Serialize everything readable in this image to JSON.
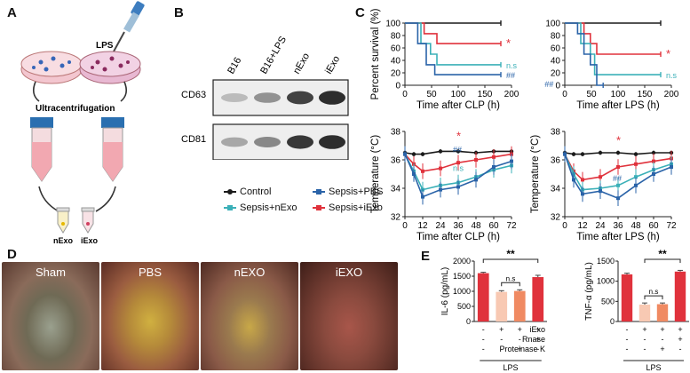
{
  "panels": {
    "A": "A",
    "B": "B",
    "C": "C",
    "D": "D",
    "E": "E"
  },
  "panelA": {
    "lps": "LPS",
    "ultracentrifugation": "Ultracentrifugation",
    "nexo": "nExo",
    "iexo": "iExo"
  },
  "panelB": {
    "lanes": [
      "B16",
      "B16+LPS",
      "nExo",
      "iExo"
    ],
    "rows": [
      "CD63",
      "CD81"
    ]
  },
  "legend": [
    {
      "label": "Control",
      "color": "#1a1a1a"
    },
    {
      "label": "Sepsis+PBS",
      "color": "#2a63a8"
    },
    {
      "label": "Sepsis+nExo",
      "color": "#3bb0b8"
    },
    {
      "label": "Sepsis+iExo",
      "color": "#e0323c"
    }
  ],
  "colors": {
    "control": "#1a1a1a",
    "pbs": "#2a63a8",
    "nexo": "#3bb0b8",
    "iexo": "#e0323c"
  },
  "panelD": {
    "labels": [
      "Sham",
      "PBS",
      "nEXO",
      "iEXO"
    ]
  },
  "chart_data": [
    {
      "type": "line",
      "id": "survival-clp",
      "xlabel": "Time after CLP (h)",
      "ylabel": "Percent survival (%)",
      "xlim": [
        0,
        200
      ],
      "ylim": [
        0,
        100
      ],
      "xticks": [
        0,
        50,
        100,
        150,
        200
      ],
      "yticks": [
        0,
        20,
        40,
        60,
        80,
        100
      ],
      "series": [
        {
          "name": "Control",
          "points": [
            [
              0,
              100
            ],
            [
              180,
              100
            ]
          ]
        },
        {
          "name": "Sepsis+iExo",
          "points": [
            [
              0,
              100
            ],
            [
              36,
              100
            ],
            [
              36,
              83
            ],
            [
              60,
              83
            ],
            [
              60,
              67
            ],
            [
              180,
              67
            ]
          ]
        },
        {
          "name": "Sepsis+nExo",
          "points": [
            [
              0,
              100
            ],
            [
              30,
              100
            ],
            [
              30,
              67
            ],
            [
              48,
              67
            ],
            [
              48,
              50
            ],
            [
              60,
              50
            ],
            [
              60,
              33
            ],
            [
              180,
              33
            ]
          ]
        },
        {
          "name": "Sepsis+PBS",
          "points": [
            [
              0,
              100
            ],
            [
              24,
              100
            ],
            [
              24,
              67
            ],
            [
              40,
              67
            ],
            [
              40,
              33
            ],
            [
              56,
              33
            ],
            [
              56,
              17
            ],
            [
              180,
              17
            ]
          ]
        }
      ],
      "annotations": [
        {
          "text": "*",
          "series": "Sepsis+iExo"
        },
        {
          "text": "n.s",
          "series": "Sepsis+nExo"
        },
        {
          "text": "##",
          "series": "Sepsis+PBS"
        }
      ]
    },
    {
      "type": "line",
      "id": "survival-lps",
      "xlabel": "Time after LPS (h)",
      "ylabel": "",
      "xlim": [
        0,
        200
      ],
      "ylim": [
        0,
        100
      ],
      "xticks": [
        0,
        50,
        100,
        150,
        200
      ],
      "yticks": [
        0,
        20,
        40,
        60,
        80,
        100
      ],
      "series": [
        {
          "name": "Control",
          "points": [
            [
              0,
              100
            ],
            [
              180,
              100
            ]
          ]
        },
        {
          "name": "Sepsis+iExo",
          "points": [
            [
              0,
              100
            ],
            [
              36,
              100
            ],
            [
              36,
              83
            ],
            [
              48,
              83
            ],
            [
              48,
              67
            ],
            [
              60,
              67
            ],
            [
              60,
              50
            ],
            [
              180,
              50
            ]
          ]
        },
        {
          "name": "Sepsis+nExo",
          "points": [
            [
              0,
              100
            ],
            [
              30,
              100
            ],
            [
              30,
              67
            ],
            [
              48,
              67
            ],
            [
              48,
              50
            ],
            [
              56,
              50
            ],
            [
              56,
              17
            ],
            [
              180,
              17
            ]
          ]
        },
        {
          "name": "Sepsis+PBS",
          "points": [
            [
              0,
              100
            ],
            [
              24,
              100
            ],
            [
              24,
              83
            ],
            [
              36,
              83
            ],
            [
              36,
              50
            ],
            [
              48,
              50
            ],
            [
              48,
              33
            ],
            [
              60,
              33
            ],
            [
              60,
              0
            ],
            [
              72,
              0
            ]
          ]
        }
      ],
      "annotations": [
        {
          "text": "*",
          "series": "Sepsis+iExo"
        },
        {
          "text": "n.s",
          "series": "Sepsis+nExo"
        },
        {
          "text": "##",
          "series": "Sepsis+PBS"
        }
      ]
    },
    {
      "type": "line",
      "id": "temperature-clp",
      "xlabel": "Time after CLP (h)",
      "ylabel": "Temperature (°C)",
      "xlim": [
        0,
        72
      ],
      "ylim": [
        32,
        38
      ],
      "xticks": [
        0,
        12,
        24,
        36,
        48,
        60,
        72
      ],
      "yticks": [
        32,
        34,
        36,
        38
      ],
      "x": [
        0,
        6,
        12,
        24,
        36,
        48,
        60,
        72
      ],
      "series": [
        {
          "name": "Control",
          "values": [
            36.5,
            36.4,
            36.4,
            36.6,
            36.6,
            36.5,
            36.6,
            36.6
          ]
        },
        {
          "name": "Sepsis+iExo",
          "values": [
            36.4,
            35.7,
            35.2,
            35.4,
            35.8,
            36.0,
            36.2,
            36.4
          ]
        },
        {
          "name": "Sepsis+nExo",
          "values": [
            36.4,
            35.2,
            33.9,
            34.2,
            34.4,
            34.8,
            35.3,
            35.6
          ]
        },
        {
          "name": "Sepsis+PBS",
          "values": [
            36.4,
            35.0,
            33.4,
            33.9,
            34.1,
            34.6,
            35.5,
            35.9
          ]
        }
      ],
      "annotations": [
        {
          "text": "*",
          "series": "Sepsis+iExo"
        },
        {
          "text": "##",
          "series": "Sepsis+PBS"
        },
        {
          "text": "n.s",
          "series": "Sepsis+nExo"
        }
      ]
    },
    {
      "type": "line",
      "id": "temperature-lps",
      "xlabel": "Time after LPS (h)",
      "ylabel": "Temperature (°C)",
      "xlim": [
        0,
        72
      ],
      "ylim": [
        32,
        38
      ],
      "xticks": [
        0,
        12,
        24,
        36,
        48,
        60,
        72
      ],
      "yticks": [
        32,
        34,
        36,
        38
      ],
      "x": [
        0,
        6,
        12,
        24,
        36,
        48,
        60,
        72
      ],
      "series": [
        {
          "name": "Control",
          "values": [
            36.5,
            36.4,
            36.4,
            36.5,
            36.5,
            36.4,
            36.5,
            36.5
          ]
        },
        {
          "name": "Sepsis+iExo",
          "values": [
            36.4,
            35.2,
            34.6,
            34.8,
            35.5,
            35.7,
            35.9,
            36.1
          ]
        },
        {
          "name": "Sepsis+nExo",
          "values": [
            36.4,
            35.0,
            33.9,
            34.0,
            34.2,
            34.8,
            35.3,
            35.7
          ]
        },
        {
          "name": "Sepsis+PBS",
          "values": [
            36.4,
            34.6,
            33.6,
            33.8,
            33.3,
            34.2,
            35.0,
            35.5
          ]
        }
      ],
      "annotations": [
        {
          "text": "*",
          "series": "Sepsis+iExo"
        },
        {
          "text": "##",
          "series": "Sepsis+PBS"
        }
      ]
    },
    {
      "type": "bar",
      "id": "il6",
      "ylabel": "IL-6 (pg/mL)",
      "ylim": [
        0,
        2000
      ],
      "yticks": [
        0,
        500,
        1000,
        1500,
        2000
      ],
      "values": [
        1600,
        980,
        1010,
        1470
      ],
      "errors": [
        30,
        40,
        40,
        60
      ],
      "bar_colors": [
        "#e0323c",
        "#f8c9b3",
        "#f08a62",
        "#e0323c"
      ],
      "annotations": [
        {
          "text": "**",
          "from": 0,
          "to": 3
        },
        {
          "text": "n.s",
          "from": 1,
          "to": 2
        }
      ]
    },
    {
      "type": "bar",
      "id": "tnf",
      "ylabel": "TNF-α (pg/mL)",
      "ylim": [
        0,
        1500
      ],
      "yticks": [
        0,
        500,
        1000,
        1500
      ],
      "values": [
        1170,
        420,
        430,
        1240
      ],
      "errors": [
        30,
        40,
        30,
        30
      ],
      "bar_colors": [
        "#e0323c",
        "#f8c9b3",
        "#f08a62",
        "#e0323c"
      ],
      "annotations": [
        {
          "text": "**",
          "from": 1,
          "to": 3
        },
        {
          "text": "n.s",
          "from": 1,
          "to": 2
        }
      ]
    }
  ],
  "panelE": {
    "row_labels": [
      "iExo",
      "Rnase",
      "Proteinase K"
    ],
    "signs": [
      [
        "-",
        "+",
        "+",
        "+"
      ],
      [
        "-",
        "-",
        "-",
        "+"
      ],
      [
        "-",
        "-",
        "+",
        "-"
      ]
    ],
    "group_label": "LPS"
  }
}
